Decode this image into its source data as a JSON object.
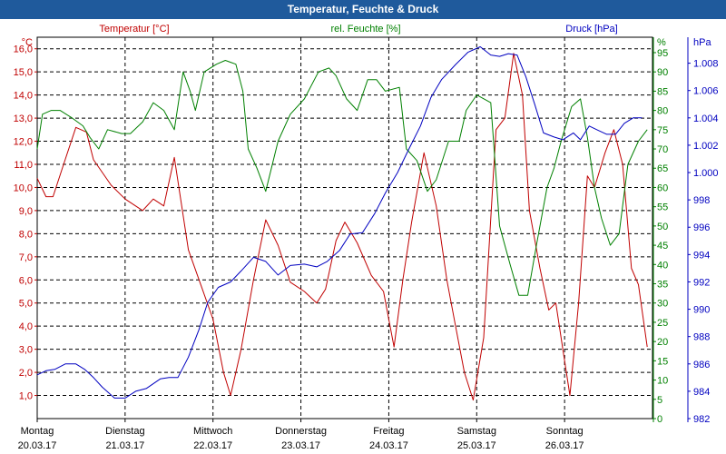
{
  "window": {
    "title": "Temperatur, Feuchte & Druck"
  },
  "chart_data": {
    "type": "line",
    "title": "Temperatur, Feuchte & Druck",
    "grid": true,
    "x_axis": {
      "labels": [
        {
          "day": "Montag",
          "date": "20.03.17"
        },
        {
          "day": "Dienstag",
          "date": "21.03.17"
        },
        {
          "day": "Mittwoch",
          "date": "22.03.17"
        },
        {
          "day": "Donnerstag",
          "date": "23.03.17"
        },
        {
          "day": "Freitag",
          "date": "24.03.17"
        },
        {
          "day": "Samstag",
          "date": "25.03.17"
        },
        {
          "day": "Sonntag",
          "date": "26.03.17"
        }
      ],
      "xlim": [
        "20.03.17 00:00",
        "27.03.17 00:00"
      ]
    },
    "axes": {
      "temperature": {
        "unit": "°C",
        "label": "Temperatur [°C]",
        "ylim": [
          0,
          16.5
        ],
        "ticks": [
          "1,0",
          "2,0",
          "3,0",
          "4,0",
          "5,0",
          "6,0",
          "7,0",
          "8,0",
          "9,0",
          "10,0",
          "11,0",
          "12,0",
          "13,0",
          "14,0",
          "15,0",
          "16,0"
        ],
        "color": "#c00000"
      },
      "humidity": {
        "unit": "%",
        "label": "rel. Feuchte [%]",
        "ylim": [
          0,
          99
        ],
        "ticks": [
          "0",
          "5",
          "10",
          "15",
          "20",
          "25",
          "30",
          "35",
          "40",
          "45",
          "50",
          "55",
          "60",
          "65",
          "70",
          "75",
          "80",
          "85",
          "90",
          "95"
        ],
        "color": "#008000"
      },
      "pressure": {
        "unit": "hPa",
        "label": "Druck [hPa]",
        "ylim": [
          982,
          1009.9
        ],
        "ticks": [
          "982",
          "984",
          "986",
          "988",
          "990",
          "992",
          "994",
          "996",
          "998",
          "1.000",
          "1.002",
          "1.004",
          "1.006",
          "1.008"
        ],
        "color": "#0000c0"
      }
    },
    "series": [
      {
        "name": "Temperatur [°C]",
        "axis": "temperature",
        "color": "#c00000",
        "points": [
          [
            0,
            10.4
          ],
          [
            0.5,
            9.6
          ],
          [
            0.9,
            9.6
          ],
          [
            1.5,
            11.0
          ],
          [
            2.2,
            12.6
          ],
          [
            2.8,
            12.4
          ],
          [
            3.2,
            11.2
          ],
          [
            4.2,
            10.1
          ],
          [
            5.0,
            9.5
          ],
          [
            6.0,
            9.0
          ],
          [
            6.6,
            9.5
          ],
          [
            7.2,
            9.2
          ],
          [
            7.8,
            11.3
          ],
          [
            8.6,
            7.3
          ],
          [
            9.3,
            5.8
          ],
          [
            10.0,
            4.3
          ],
          [
            10.6,
            2.0
          ],
          [
            11.0,
            1.0
          ],
          [
            11.6,
            3.0
          ],
          [
            12.3,
            6.0
          ],
          [
            13.0,
            8.6
          ],
          [
            13.7,
            7.5
          ],
          [
            14.4,
            5.9
          ],
          [
            15.2,
            5.5
          ],
          [
            15.9,
            5.0
          ],
          [
            16.4,
            5.6
          ],
          [
            17.0,
            7.7
          ],
          [
            17.5,
            8.5
          ],
          [
            18.2,
            7.6
          ],
          [
            19.0,
            6.2
          ],
          [
            19.7,
            5.5
          ],
          [
            20.3,
            3.1
          ],
          [
            20.8,
            6.0
          ],
          [
            21.3,
            8.5
          ],
          [
            22.0,
            11.5
          ],
          [
            22.7,
            9.2
          ],
          [
            23.3,
            6.0
          ],
          [
            23.8,
            4.0
          ],
          [
            24.3,
            2.0
          ],
          [
            24.8,
            0.8
          ],
          [
            25.4,
            3.5
          ],
          [
            26.1,
            12.5
          ],
          [
            26.6,
            13.0
          ],
          [
            27.1,
            15.8
          ],
          [
            27.6,
            14.0
          ],
          [
            28.0,
            9.0
          ],
          [
            28.6,
            6.5
          ],
          [
            29.1,
            4.7
          ],
          [
            29.5,
            5.0
          ],
          [
            29.9,
            3.0
          ],
          [
            30.3,
            1.0
          ],
          [
            30.8,
            5.0
          ],
          [
            31.3,
            10.5
          ],
          [
            31.7,
            10.0
          ],
          [
            32.3,
            11.5
          ],
          [
            32.8,
            12.5
          ],
          [
            33.3,
            11.0
          ],
          [
            33.8,
            6.5
          ],
          [
            34.2,
            5.8
          ],
          [
            34.7,
            3.1
          ]
        ]
      },
      {
        "name": "rel. Feuchte [%]",
        "axis": "humidity",
        "color": "#008000",
        "points": [
          [
            0,
            70
          ],
          [
            0.3,
            79
          ],
          [
            0.8,
            80
          ],
          [
            1.3,
            80
          ],
          [
            2.0,
            78
          ],
          [
            2.6,
            76
          ],
          [
            3.0,
            73
          ],
          [
            3.5,
            70
          ],
          [
            4.0,
            75
          ],
          [
            4.8,
            74
          ],
          [
            5.3,
            74
          ],
          [
            6.0,
            77
          ],
          [
            6.6,
            82
          ],
          [
            7.2,
            80
          ],
          [
            7.8,
            75
          ],
          [
            8.3,
            90
          ],
          [
            8.7,
            85
          ],
          [
            9.0,
            80
          ],
          [
            9.5,
            90
          ],
          [
            10.2,
            92
          ],
          [
            10.7,
            93
          ],
          [
            11.3,
            92
          ],
          [
            11.7,
            85
          ],
          [
            12.0,
            70
          ],
          [
            12.5,
            65
          ],
          [
            13.0,
            59
          ],
          [
            13.7,
            72
          ],
          [
            14.4,
            79
          ],
          [
            15.2,
            83
          ],
          [
            16.0,
            90
          ],
          [
            16.6,
            91
          ],
          [
            17.0,
            89
          ],
          [
            17.6,
            83
          ],
          [
            18.2,
            80
          ],
          [
            18.8,
            88
          ],
          [
            19.3,
            88
          ],
          [
            19.8,
            85
          ],
          [
            20.6,
            86
          ],
          [
            21.0,
            70
          ],
          [
            21.6,
            67
          ],
          [
            22.2,
            59
          ],
          [
            22.7,
            62
          ],
          [
            23.4,
            72
          ],
          [
            24.0,
            72
          ],
          [
            24.4,
            80
          ],
          [
            25.0,
            84
          ],
          [
            25.8,
            82
          ],
          [
            26.3,
            50
          ],
          [
            26.9,
            40
          ],
          [
            27.4,
            32
          ],
          [
            27.9,
            32
          ],
          [
            28.4,
            45
          ],
          [
            29.0,
            60
          ],
          [
            29.4,
            65
          ],
          [
            29.8,
            72
          ],
          [
            30.4,
            81
          ],
          [
            30.9,
            83
          ],
          [
            31.3,
            73
          ],
          [
            31.7,
            60
          ],
          [
            32.1,
            52
          ],
          [
            32.6,
            45
          ],
          [
            33.1,
            48
          ],
          [
            33.6,
            66
          ],
          [
            34.2,
            72
          ],
          [
            34.7,
            75
          ]
        ]
      },
      {
        "name": "Druck [hPa]",
        "axis": "pressure",
        "color": "#0000c0",
        "points": [
          [
            0,
            985.2
          ],
          [
            0.5,
            985.5
          ],
          [
            1.0,
            985.6
          ],
          [
            1.6,
            986.0
          ],
          [
            2.2,
            986.0
          ],
          [
            2.7,
            985.6
          ],
          [
            3.2,
            985.0
          ],
          [
            3.7,
            984.3
          ],
          [
            4.4,
            983.5
          ],
          [
            5.0,
            983.5
          ],
          [
            5.6,
            984.0
          ],
          [
            6.2,
            984.2
          ],
          [
            7.0,
            984.9
          ],
          [
            7.5,
            985.0
          ],
          [
            8.0,
            985.0
          ],
          [
            8.6,
            986.5
          ],
          [
            9.2,
            988.5
          ],
          [
            9.7,
            990.5
          ],
          [
            10.3,
            991.6
          ],
          [
            11.0,
            992.0
          ],
          [
            11.6,
            992.8
          ],
          [
            12.3,
            993.8
          ],
          [
            13.0,
            993.5
          ],
          [
            13.7,
            992.5
          ],
          [
            14.4,
            993.2
          ],
          [
            15.2,
            993.3
          ],
          [
            15.9,
            993.1
          ],
          [
            16.5,
            993.5
          ],
          [
            17.2,
            994.3
          ],
          [
            17.8,
            995.5
          ],
          [
            18.5,
            995.6
          ],
          [
            19.2,
            997.0
          ],
          [
            19.8,
            998.5
          ],
          [
            20.5,
            1000.0
          ],
          [
            21.1,
            1001.6
          ],
          [
            21.8,
            1003.4
          ],
          [
            22.4,
            1005.5
          ],
          [
            23.0,
            1006.8
          ],
          [
            23.8,
            1007.9
          ],
          [
            24.5,
            1008.8
          ],
          [
            25.2,
            1009.2
          ],
          [
            25.8,
            1008.6
          ],
          [
            26.3,
            1008.5
          ],
          [
            26.8,
            1008.7
          ],
          [
            27.3,
            1008.6
          ],
          [
            27.8,
            1007.0
          ],
          [
            28.3,
            1005.0
          ],
          [
            28.8,
            1002.9
          ],
          [
            29.4,
            1002.6
          ],
          [
            29.9,
            1002.4
          ],
          [
            30.5,
            1002.9
          ],
          [
            30.9,
            1002.4
          ],
          [
            31.4,
            1003.4
          ],
          [
            31.9,
            1003.1
          ],
          [
            32.4,
            1002.8
          ],
          [
            32.9,
            1002.8
          ],
          [
            33.4,
            1003.6
          ],
          [
            33.9,
            1004.0
          ],
          [
            34.4,
            1004.0
          ]
        ]
      }
    ]
  }
}
